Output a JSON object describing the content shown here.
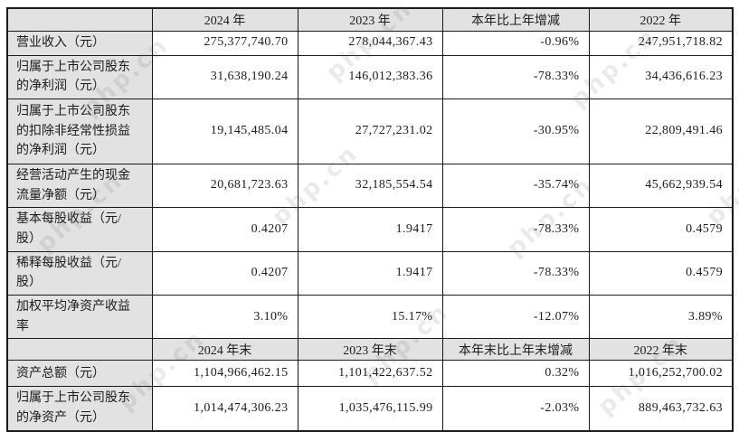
{
  "watermark": {
    "text": "php.cn"
  },
  "sections": [
    {
      "columns": [
        "",
        "2024 年",
        "2023 年",
        "本年比上年增减",
        "2022 年"
      ],
      "rows": [
        {
          "label": "营业收入（元）",
          "values": [
            "275,377,740.70",
            "278,044,367.43",
            "-0.96%",
            "247,951,718.82"
          ]
        },
        {
          "label": "归属于上市公司股东的净利润（元）",
          "values": [
            "31,638,190.24",
            "146,012,383.36",
            "-78.33%",
            "34,436,616.23"
          ]
        },
        {
          "label": "归属于上市公司股东的扣除非经常性损益的净利润（元）",
          "values": [
            "19,145,485.04",
            "27,727,231.02",
            "-30.95%",
            "22,809,491.46"
          ]
        },
        {
          "label": "经营活动产生的现金流量净额（元）",
          "values": [
            "20,681,723.63",
            "32,185,554.54",
            "-35.74%",
            "45,662,939.54"
          ]
        },
        {
          "label": "基本每股收益（元/股）",
          "values": [
            "0.4207",
            "1.9417",
            "-78.33%",
            "0.4579"
          ]
        },
        {
          "label": "稀释每股收益（元/股）",
          "values": [
            "0.4207",
            "1.9417",
            "-78.33%",
            "0.4579"
          ]
        },
        {
          "label": "加权平均净资产收益率",
          "values": [
            "3.10%",
            "15.17%",
            "-12.07%",
            "3.89%"
          ]
        }
      ]
    },
    {
      "columns": [
        "",
        "2024 年末",
        "2023 年末",
        "本年末比上年末增减",
        "2022 年末"
      ],
      "rows": [
        {
          "label": "资产总额（元）",
          "values": [
            "1,104,966,462.15",
            "1,101,422,637.52",
            "0.32%",
            "1,016,252,700.02"
          ]
        },
        {
          "label": "归属于上市公司股东的净资产（元）",
          "values": [
            "1,014,474,306.23",
            "1,035,476,115.99",
            "-2.03%",
            "889,463,732.63"
          ]
        }
      ]
    }
  ]
}
